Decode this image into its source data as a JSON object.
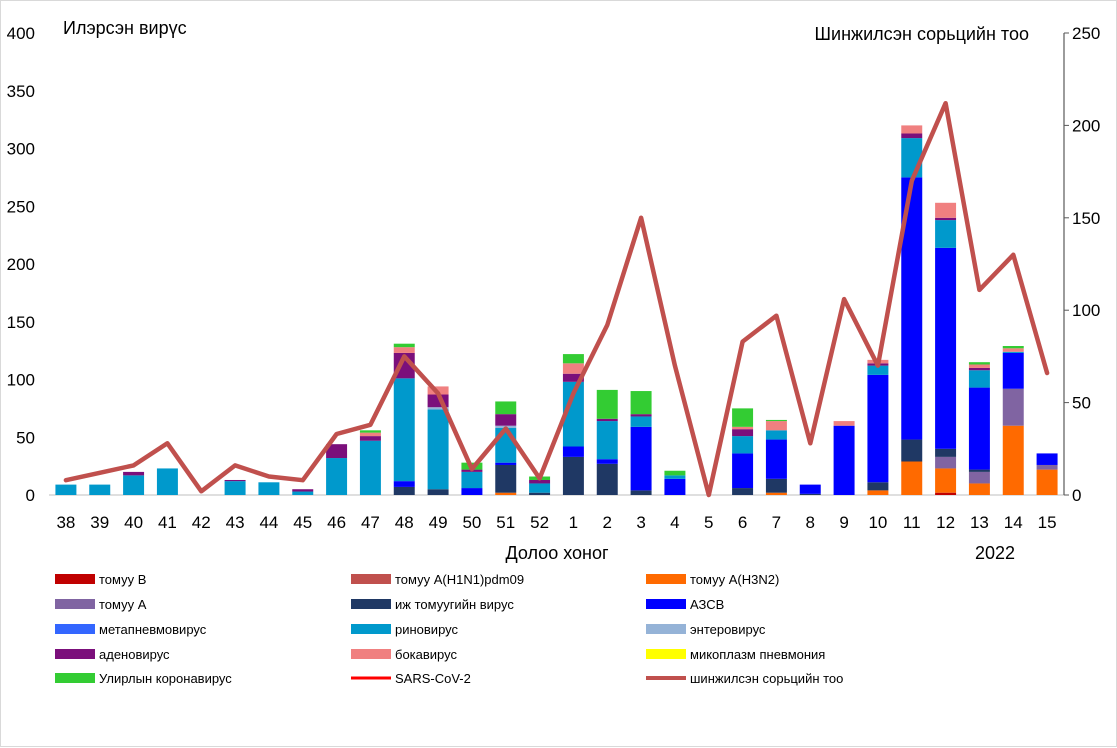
{
  "chart_data": {
    "type": "bar",
    "stacked": true,
    "y_left_label": "Илэрсэн вирүс",
    "y_right_label": "Шинжилсэн сорьцийн тоо",
    "xlabel": "Долоо хоног",
    "year_label": "2022",
    "ylim_left": [
      0,
      400
    ],
    "ylim_right": [
      0,
      250
    ],
    "y_left_ticks": [
      0,
      50,
      100,
      150,
      200,
      250,
      300,
      350,
      400
    ],
    "y_right_ticks": [
      0,
      50,
      100,
      150,
      200,
      250
    ],
    "grid": false,
    "legend_position": "bottom",
    "categories": [
      "38",
      "39",
      "40",
      "41",
      "42",
      "43",
      "44",
      "45",
      "46",
      "47",
      "48",
      "49",
      "50",
      "51",
      "52",
      "1",
      "2",
      "3",
      "4",
      "5",
      "6",
      "7",
      "8",
      "9",
      "10",
      "11",
      "12",
      "13",
      "14",
      "15"
    ],
    "series": [
      {
        "name": "томуу В",
        "color": "#c00000",
        "values": [
          0,
          0,
          0,
          0,
          0,
          0,
          0,
          0,
          0,
          0,
          0,
          0,
          0,
          0,
          0,
          0,
          0,
          0,
          0,
          0,
          0,
          0,
          0,
          0,
          0,
          0,
          2,
          0,
          0,
          0
        ]
      },
      {
        "name": "томуу A(H1N1)pdm09",
        "color": "#c0504d",
        "values": [
          0,
          0,
          0,
          0,
          0,
          0,
          0,
          0,
          0,
          0,
          0,
          0,
          0,
          0,
          0,
          0,
          0,
          0,
          0,
          0,
          0,
          0,
          0,
          0,
          0,
          0,
          0,
          0,
          0,
          0
        ]
      },
      {
        "name": "томуу A(H3N2)",
        "color": "#ff6a00",
        "values": [
          0,
          0,
          0,
          0,
          0,
          0,
          0,
          0,
          0,
          0,
          0,
          0,
          0,
          2,
          0,
          0,
          0,
          0,
          0,
          0,
          0,
          2,
          0,
          0,
          4,
          29,
          21,
          10,
          60,
          22
        ]
      },
      {
        "name": "томуу А",
        "color": "#8064a2",
        "values": [
          0,
          0,
          0,
          0,
          0,
          0,
          0,
          0,
          0,
          0,
          0,
          0,
          0,
          0,
          0,
          0,
          0,
          0,
          0,
          0,
          0,
          0,
          0,
          0,
          0,
          0,
          10,
          10,
          32,
          4
        ]
      },
      {
        "name": "иж томуугийн вирус",
        "color": "#1f3864",
        "values": [
          0,
          0,
          0,
          0,
          0,
          0,
          0,
          0,
          0,
          0,
          7,
          5,
          0,
          24,
          2,
          33,
          27,
          4,
          0,
          0,
          6,
          12,
          1,
          0,
          7,
          19,
          7,
          2,
          0,
          0
        ]
      },
      {
        "name": "АЗСВ",
        "color": "#0000ff",
        "values": [
          0,
          0,
          0,
          0,
          0,
          0,
          0,
          0,
          0,
          0,
          5,
          0,
          6,
          2,
          0,
          9,
          4,
          55,
          14,
          0,
          30,
          34,
          8,
          60,
          93,
          227,
          174,
          71,
          31,
          10
        ]
      },
      {
        "name": "метапневмовирус",
        "color": "#3366ff",
        "values": [
          0,
          0,
          0,
          0,
          0,
          0,
          0,
          0,
          0,
          0,
          0,
          0,
          0,
          0,
          0,
          0,
          0,
          0,
          0,
          0,
          0,
          0,
          0,
          0,
          0,
          0,
          0,
          0,
          0,
          0
        ]
      },
      {
        "name": "риновирус",
        "color": "#0099cc",
        "values": [
          9,
          9,
          17,
          23,
          0,
          12,
          11,
          3,
          32,
          47,
          89,
          69,
          14,
          30,
          8,
          56,
          33,
          9,
          3,
          0,
          15,
          8,
          0,
          0,
          8,
          34,
          24,
          15,
          1,
          0
        ]
      },
      {
        "name": "энтеровирус",
        "color": "#95b3d7",
        "values": [
          0,
          0,
          0,
          0,
          0,
          0,
          0,
          0,
          0,
          0,
          0,
          2,
          0,
          2,
          0,
          0,
          0,
          0,
          0,
          0,
          0,
          0,
          0,
          0,
          0,
          0,
          0,
          0,
          0,
          0
        ]
      },
      {
        "name": "аденовирус",
        "color": "#7b0f7b",
        "values": [
          0,
          0,
          3,
          0,
          0,
          1,
          0,
          2,
          12,
          4,
          22,
          11,
          2,
          10,
          3,
          7,
          2,
          2,
          0,
          0,
          6,
          0,
          0,
          0,
          2,
          4,
          2,
          2,
          0,
          0
        ]
      },
      {
        "name": "бокавирус",
        "color": "#f08080",
        "values": [
          0,
          0,
          0,
          0,
          0,
          0,
          0,
          0,
          0,
          3,
          5,
          7,
          0,
          0,
          0,
          9,
          0,
          0,
          0,
          0,
          2,
          8,
          0,
          4,
          3,
          7,
          13,
          3,
          3,
          0
        ]
      },
      {
        "name": "микоплазм пневмония",
        "color": "#ffff00",
        "values": [
          0,
          0,
          0,
          0,
          0,
          0,
          0,
          0,
          0,
          0,
          0,
          0,
          0,
          0,
          0,
          0,
          0,
          0,
          0,
          0,
          0,
          0,
          0,
          0,
          0,
          0,
          0,
          0,
          0,
          0
        ]
      },
      {
        "name": "Улирлын коронавирус",
        "color": "#33cc33",
        "values": [
          0,
          0,
          0,
          0,
          0,
          0,
          0,
          0,
          0,
          2,
          3,
          0,
          6,
          11,
          3,
          8,
          25,
          20,
          4,
          0,
          16,
          1,
          0,
          0,
          0,
          0,
          0,
          2,
          2,
          0
        ]
      },
      {
        "name": "SARS-CoV-2",
        "color": "#ff0000",
        "values": [
          0,
          0,
          0,
          0,
          0,
          0,
          0,
          0,
          0,
          0,
          0,
          0,
          0,
          0,
          0,
          0,
          0,
          0,
          0,
          0,
          0,
          0,
          0,
          0,
          0,
          0,
          0,
          0,
          0,
          0
        ]
      }
    ],
    "line_series": {
      "name": "шинжилсэн сорьцийн тоо",
      "color": "#c0504d",
      "axis": "right",
      "values": [
        8,
        12,
        16,
        28,
        2,
        16,
        10,
        8,
        33,
        38,
        75,
        55,
        14,
        36,
        9,
        55,
        92,
        150,
        70,
        0,
        83,
        97,
        28,
        106,
        70,
        170,
        212,
        111,
        130,
        66
      ]
    }
  }
}
